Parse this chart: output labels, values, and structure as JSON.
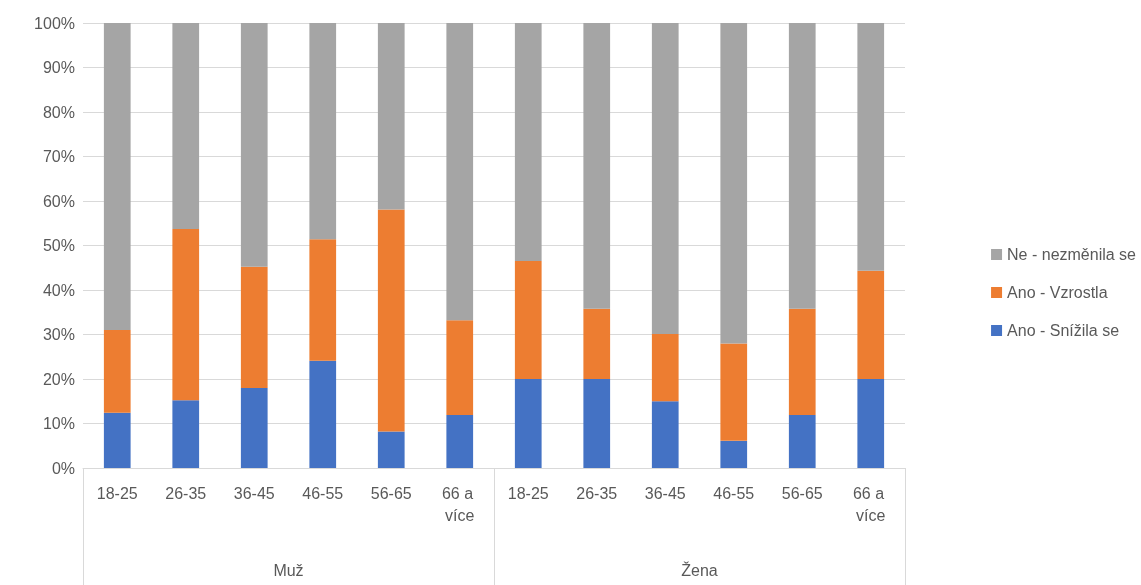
{
  "chart_data": {
    "type": "bar",
    "stacked": true,
    "categories": [
      "18-25",
      "26-35",
      "36-45",
      "46-55",
      "56-65",
      "66 a více",
      "18-25",
      "26-35",
      "36-45",
      "46-55",
      "56-65",
      "66 a více"
    ],
    "series": [
      {
        "name": "Ano - Snížila se",
        "color": "#4472c4",
        "values": [
          12.4,
          15.2,
          18,
          24.1,
          8.2,
          11.9,
          20,
          20,
          15,
          6.1,
          11.9,
          20
        ]
      },
      {
        "name": "Ano - Vzrostla",
        "color": "#ed7d31",
        "values": [
          18.6,
          38.5,
          27.2,
          27.3,
          49.9,
          21.3,
          26.5,
          15.8,
          15.1,
          21.9,
          23.9,
          24.3
        ]
      },
      {
        "name": "Ne - nezměnila se",
        "color": "#a5a5a5",
        "values": [
          69,
          46.3,
          54.8,
          48.6,
          41.9,
          66.8,
          53.5,
          64.2,
          69.9,
          72,
          64.2,
          55.7
        ]
      }
    ],
    "annotations": [
      "Muž",
      "Žena"
    ],
    "ylim": [
      0,
      100
    ],
    "yticks": [
      {
        "value": 0,
        "label": "0%"
      },
      {
        "value": 10,
        "label": "10%"
      },
      {
        "value": 20,
        "label": "20%"
      },
      {
        "value": 30,
        "label": "30%"
      },
      {
        "value": 40,
        "label": "40%"
      },
      {
        "value": 50,
        "label": "50%"
      },
      {
        "value": 60,
        "label": "60%"
      },
      {
        "value": 70,
        "label": "70%"
      },
      {
        "value": 80,
        "label": "80%"
      },
      {
        "value": 90,
        "label": "90%"
      },
      {
        "value": 100,
        "label": "100%"
      }
    ],
    "grid": "y",
    "legend": "right"
  }
}
